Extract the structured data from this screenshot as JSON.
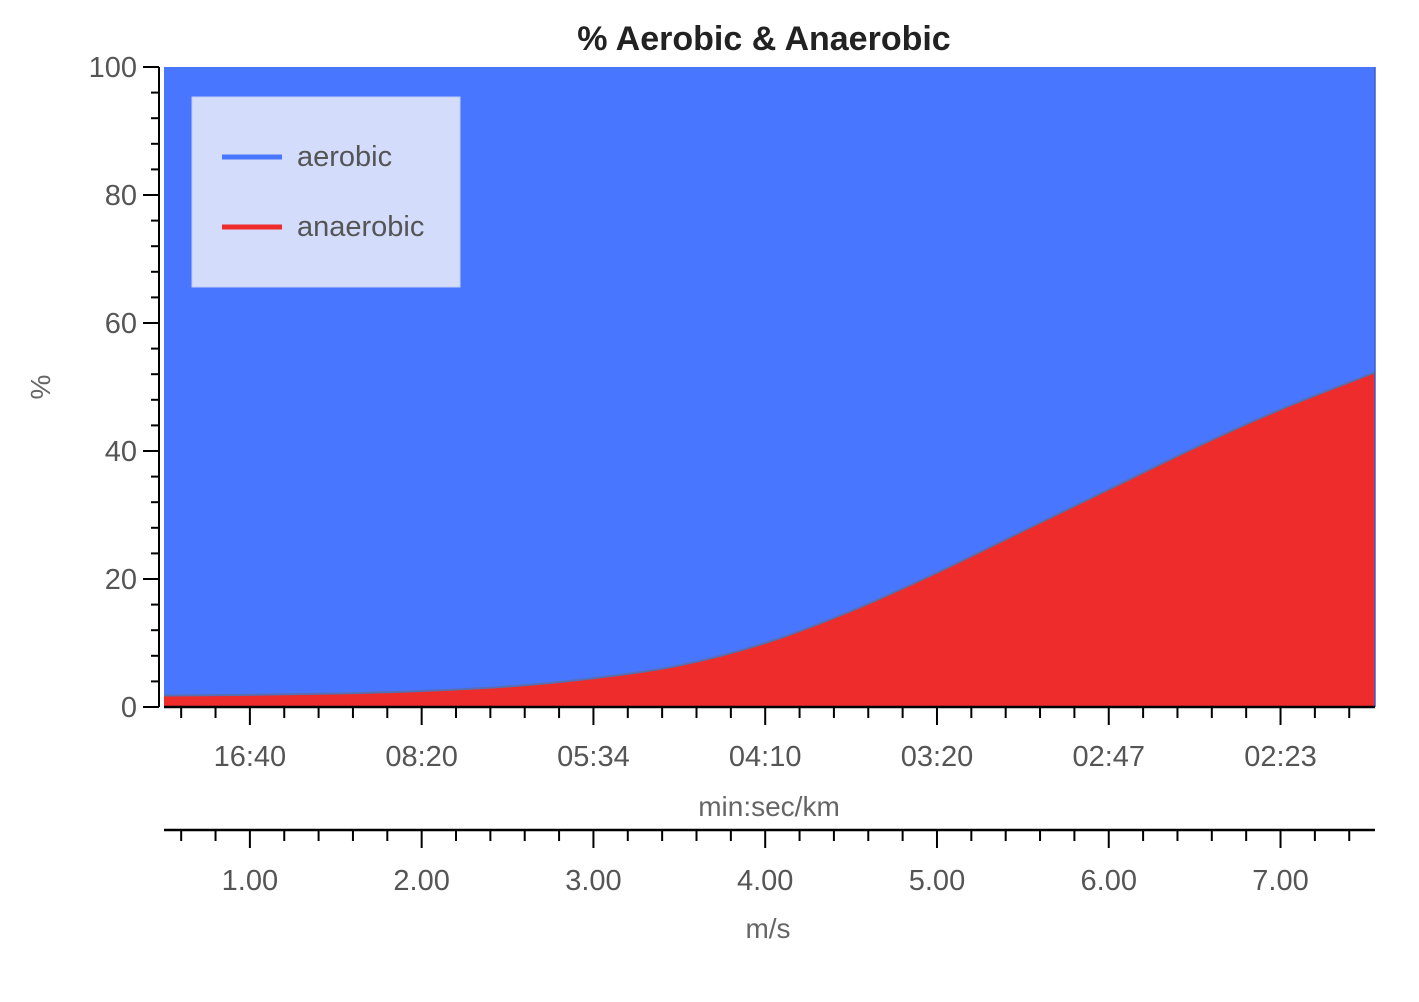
{
  "chart_data": {
    "type": "area",
    "title": "% Aerobic & Anaerobic",
    "ylabel": "%",
    "ylim": [
      0,
      100
    ],
    "y_ticks": [
      "0",
      "20",
      "40",
      "60",
      "80",
      "100"
    ],
    "x_primary": {
      "label": "min:sec/km",
      "tick_labels": [
        "16:40",
        "08:20",
        "05:34",
        "04:10",
        "03:20",
        "02:47",
        "02:23"
      ]
    },
    "x_secondary": {
      "label": "m/s",
      "tick_labels": [
        "1.00",
        "2.00",
        "3.00",
        "4.00",
        "5.00",
        "6.00",
        "7.00"
      ]
    },
    "xlim": [
      0.5,
      7.55
    ],
    "x_tick_values": [
      1,
      2,
      3,
      4,
      5,
      6,
      7
    ],
    "stacked": true,
    "legend_position": "top-left",
    "x": [
      0.5,
      1.0,
      1.5,
      2.0,
      2.5,
      3.0,
      3.5,
      4.0,
      4.5,
      5.0,
      5.5,
      6.0,
      6.5,
      7.0,
      7.55
    ],
    "series": [
      {
        "name": "aerobic",
        "color": "#4876ff",
        "values": [
          98.2,
          98.1,
          97.9,
          97.5,
          96.8,
          95.5,
          93.5,
          90.0,
          85.0,
          79.0,
          72.5,
          66.0,
          59.5,
          53.5,
          47.7
        ]
      },
      {
        "name": "anaerobic",
        "color": "#ee2c2c",
        "values": [
          1.8,
          1.9,
          2.1,
          2.5,
          3.2,
          4.5,
          6.5,
          10.0,
          15.0,
          21.0,
          27.5,
          34.0,
          40.5,
          46.5,
          52.3
        ]
      }
    ]
  }
}
